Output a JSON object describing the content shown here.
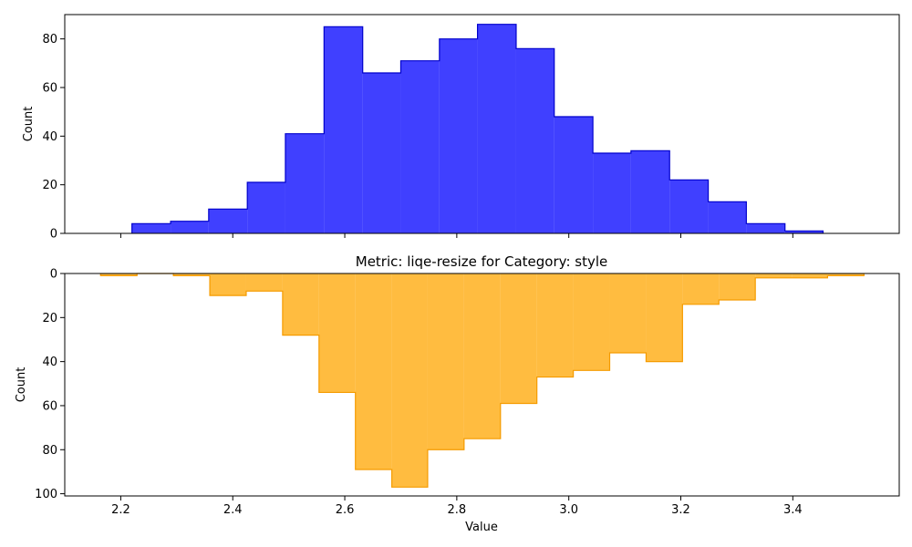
{
  "chart_data": [
    {
      "type": "histogram",
      "orientation": "up",
      "title": "",
      "xlabel": "",
      "ylabel": "Count",
      "xlim": [
        2.1,
        3.59
      ],
      "ylim": [
        0,
        90
      ],
      "xticks": [
        2.2,
        2.4,
        2.6,
        2.8,
        3.0,
        3.2,
        3.4
      ],
      "xtick_labels_visible": false,
      "yticks": [
        0,
        20,
        40,
        60,
        80
      ],
      "fill_color": "#0000ff",
      "edge_color": "#0000cc",
      "bin_edges": [
        2.22,
        2.289,
        2.357,
        2.426,
        2.494,
        2.563,
        2.632,
        2.7,
        2.769,
        2.837,
        2.906,
        2.974,
        3.043,
        3.111,
        3.18,
        3.249,
        3.317,
        3.386,
        3.454
      ],
      "counts": [
        4,
        5,
        10,
        21,
        41,
        85,
        66,
        71,
        80,
        86,
        76,
        48,
        33,
        34,
        22,
        13,
        4,
        1
      ]
    },
    {
      "type": "histogram",
      "orientation": "down",
      "title": "Metric: liqe-resize for Category: style",
      "xlabel": "Value",
      "ylabel": "Count",
      "xlim": [
        2.1,
        3.59
      ],
      "ylim": [
        0,
        101
      ],
      "xticks": [
        2.2,
        2.4,
        2.6,
        2.8,
        3.0,
        3.2,
        3.4
      ],
      "xtick_labels": [
        "2.2",
        "2.4",
        "2.6",
        "2.8",
        "3.0",
        "3.2",
        "3.4"
      ],
      "yticks": [
        0,
        20,
        40,
        60,
        80,
        100
      ],
      "fill_color": "#ffa500",
      "edge_color": "#f59b00",
      "bin_edges": [
        2.164,
        2.229,
        2.294,
        2.359,
        2.424,
        2.489,
        2.554,
        2.619,
        2.684,
        2.748,
        2.813,
        2.878,
        2.943,
        3.008,
        3.073,
        3.138,
        3.203,
        3.268,
        3.333,
        3.398,
        3.462,
        3.527
      ],
      "counts": [
        1,
        0,
        1,
        10,
        8,
        28,
        54,
        89,
        97,
        80,
        75,
        59,
        47,
        44,
        36,
        40,
        14,
        12,
        2,
        2,
        1
      ]
    }
  ]
}
